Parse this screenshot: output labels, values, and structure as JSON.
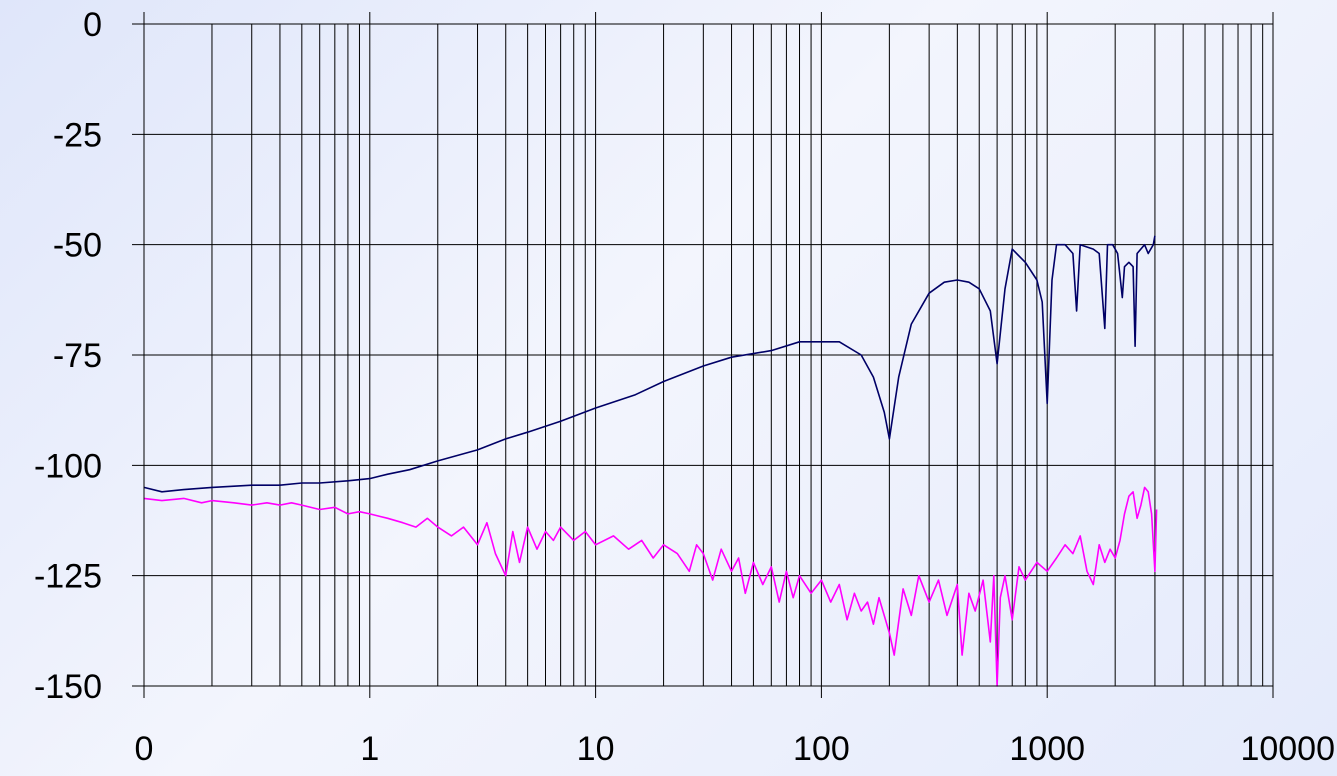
{
  "chart_data": {
    "type": "line",
    "title": "",
    "xlabel": "",
    "ylabel": "",
    "x_scale": "log",
    "xlim": [
      0.1,
      10000
    ],
    "ylim": [
      -150,
      0
    ],
    "grid": true,
    "legend": "none",
    "x_ticks": [
      {
        "value": 0.1,
        "label": "0"
      },
      {
        "value": 1,
        "label": "1"
      },
      {
        "value": 10,
        "label": "10"
      },
      {
        "value": 100,
        "label": "100"
      },
      {
        "value": 1000,
        "label": "1000"
      },
      {
        "value": 10000,
        "label": "10000"
      }
    ],
    "y_ticks": [
      {
        "value": 0,
        "label": "0"
      },
      {
        "value": -25,
        "label": "-25"
      },
      {
        "value": -50,
        "label": "-50"
      },
      {
        "value": -75,
        "label": "-75"
      },
      {
        "value": -100,
        "label": "-100"
      },
      {
        "value": -125,
        "label": "-125"
      },
      {
        "value": -150,
        "label": "-150"
      }
    ],
    "series": [
      {
        "color": "#000066",
        "points": [
          [
            0.1,
            -105
          ],
          [
            0.12,
            -106
          ],
          [
            0.15,
            -105.5
          ],
          [
            0.2,
            -105
          ],
          [
            0.3,
            -104.5
          ],
          [
            0.4,
            -104.5
          ],
          [
            0.5,
            -104
          ],
          [
            0.6,
            -104
          ],
          [
            0.8,
            -103.5
          ],
          [
            1,
            -103
          ],
          [
            1.2,
            -102
          ],
          [
            1.5,
            -101
          ],
          [
            2,
            -99
          ],
          [
            3,
            -96.5
          ],
          [
            4,
            -94
          ],
          [
            5,
            -92.5
          ],
          [
            7,
            -90
          ],
          [
            10,
            -87
          ],
          [
            15,
            -84
          ],
          [
            20,
            -81
          ],
          [
            30,
            -77.5
          ],
          [
            40,
            -75.5
          ],
          [
            60,
            -74
          ],
          [
            80,
            -72
          ],
          [
            100,
            -72
          ],
          [
            120,
            -72
          ],
          [
            150,
            -75
          ],
          [
            170,
            -80
          ],
          [
            190,
            -88
          ],
          [
            200,
            -94
          ],
          [
            220,
            -80
          ],
          [
            250,
            -68
          ],
          [
            300,
            -61
          ],
          [
            350,
            -58.5
          ],
          [
            400,
            -58
          ],
          [
            450,
            -58.5
          ],
          [
            500,
            -60
          ],
          [
            560,
            -65
          ],
          [
            600,
            -77
          ],
          [
            650,
            -60
          ],
          [
            700,
            -51
          ],
          [
            800,
            -54
          ],
          [
            900,
            -58
          ],
          [
            950,
            -63
          ],
          [
            1000,
            -86
          ],
          [
            1050,
            -58
          ],
          [
            1100,
            -50
          ],
          [
            1200,
            -50
          ],
          [
            1300,
            -52
          ],
          [
            1350,
            -65
          ],
          [
            1400,
            -50
          ],
          [
            1600,
            -51
          ],
          [
            1700,
            -52
          ],
          [
            1800,
            -69
          ],
          [
            1850,
            -50
          ],
          [
            1950,
            -50
          ],
          [
            2050,
            -52
          ],
          [
            2150,
            -62
          ],
          [
            2200,
            -55
          ],
          [
            2300,
            -54
          ],
          [
            2400,
            -55
          ],
          [
            2450,
            -73
          ],
          [
            2500,
            -52
          ],
          [
            2700,
            -50
          ],
          [
            2800,
            -52
          ],
          [
            2950,
            -50
          ],
          [
            3000,
            -48
          ]
        ]
      },
      {
        "color": "#ff00ff",
        "points": [
          [
            0.1,
            -107.5
          ],
          [
            0.12,
            -108
          ],
          [
            0.15,
            -107.5
          ],
          [
            0.18,
            -108.5
          ],
          [
            0.2,
            -108
          ],
          [
            0.25,
            -108.5
          ],
          [
            0.3,
            -109
          ],
          [
            0.35,
            -108.5
          ],
          [
            0.4,
            -109
          ],
          [
            0.45,
            -108.5
          ],
          [
            0.5,
            -109
          ],
          [
            0.6,
            -110
          ],
          [
            0.7,
            -109.5
          ],
          [
            0.8,
            -111
          ],
          [
            0.9,
            -110.5
          ],
          [
            1,
            -111
          ],
          [
            1.2,
            -112
          ],
          [
            1.4,
            -113
          ],
          [
            1.6,
            -114
          ],
          [
            1.8,
            -112
          ],
          [
            2,
            -114
          ],
          [
            2.3,
            -116
          ],
          [
            2.6,
            -114
          ],
          [
            3,
            -118
          ],
          [
            3.3,
            -113
          ],
          [
            3.6,
            -120
          ],
          [
            4,
            -125
          ],
          [
            4.3,
            -115
          ],
          [
            4.6,
            -122
          ],
          [
            5,
            -114
          ],
          [
            5.5,
            -119
          ],
          [
            6,
            -115
          ],
          [
            6.5,
            -117
          ],
          [
            7,
            -114
          ],
          [
            8,
            -117
          ],
          [
            9,
            -115
          ],
          [
            10,
            -118
          ],
          [
            12,
            -116
          ],
          [
            14,
            -119
          ],
          [
            16,
            -117
          ],
          [
            18,
            -121
          ],
          [
            20,
            -118
          ],
          [
            23,
            -120
          ],
          [
            26,
            -124
          ],
          [
            28,
            -118
          ],
          [
            30,
            -120
          ],
          [
            33,
            -126
          ],
          [
            36,
            -119
          ],
          [
            40,
            -124
          ],
          [
            43,
            -121
          ],
          [
            46,
            -129
          ],
          [
            50,
            -122
          ],
          [
            55,
            -127
          ],
          [
            60,
            -123
          ],
          [
            65,
            -131
          ],
          [
            70,
            -124
          ],
          [
            75,
            -130
          ],
          [
            80,
            -125
          ],
          [
            90,
            -129
          ],
          [
            100,
            -126
          ],
          [
            110,
            -131
          ],
          [
            120,
            -127
          ],
          [
            130,
            -135
          ],
          [
            140,
            -129
          ],
          [
            150,
            -133
          ],
          [
            160,
            -131
          ],
          [
            170,
            -136
          ],
          [
            180,
            -130
          ],
          [
            200,
            -138
          ],
          [
            210,
            -143
          ],
          [
            230,
            -128
          ],
          [
            250,
            -134
          ],
          [
            270,
            -125
          ],
          [
            300,
            -131
          ],
          [
            330,
            -126
          ],
          [
            360,
            -134
          ],
          [
            400,
            -127
          ],
          [
            420,
            -143
          ],
          [
            450,
            -129
          ],
          [
            480,
            -133
          ],
          [
            520,
            -126
          ],
          [
            560,
            -140
          ],
          [
            580,
            -125
          ],
          [
            600,
            -150
          ],
          [
            620,
            -130
          ],
          [
            650,
            -125
          ],
          [
            700,
            -135
          ],
          [
            750,
            -123
          ],
          [
            800,
            -126
          ],
          [
            900,
            -122
          ],
          [
            1000,
            -124
          ],
          [
            1100,
            -121
          ],
          [
            1200,
            -118
          ],
          [
            1300,
            -120
          ],
          [
            1400,
            -116
          ],
          [
            1500,
            -124
          ],
          [
            1600,
            -127
          ],
          [
            1700,
            -118
          ],
          [
            1800,
            -122
          ],
          [
            1900,
            -119
          ],
          [
            2000,
            -121
          ],
          [
            2100,
            -117
          ],
          [
            2200,
            -111
          ],
          [
            2300,
            -107
          ],
          [
            2400,
            -106
          ],
          [
            2500,
            -112
          ],
          [
            2600,
            -109
          ],
          [
            2700,
            -105
          ],
          [
            2800,
            -106
          ],
          [
            2900,
            -111
          ],
          [
            3000,
            -124
          ],
          [
            3050,
            -110
          ]
        ]
      }
    ]
  }
}
